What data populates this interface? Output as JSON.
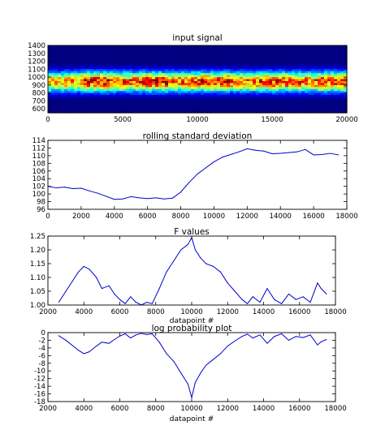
{
  "chart_data": [
    {
      "type": "heatmap",
      "title": "input signal",
      "xlabel": "",
      "ylabel": "",
      "xlim": [
        0,
        20000
      ],
      "ylim": [
        550,
        1400
      ],
      "x_ticks": [
        0,
        5000,
        10000,
        15000,
        20000
      ],
      "y_ticks": [
        600,
        700,
        800,
        900,
        1000,
        1100,
        1200,
        1300,
        1400
      ],
      "colormap": "jet",
      "band": {
        "center": 940,
        "halfwidth": 140,
        "intensity_profile": [
          0.6,
          0.95,
          0.75,
          0.9,
          0.7,
          0.85,
          0.65,
          0.8,
          0.7,
          0.85
        ]
      }
    },
    {
      "type": "line",
      "title": "rolling standard deviation",
      "xlabel": "",
      "ylabel": "",
      "xlim": [
        0,
        18000
      ],
      "ylim": [
        96,
        114
      ],
      "x_ticks": [
        0,
        2000,
        4000,
        6000,
        8000,
        10000,
        12000,
        14000,
        16000,
        18000
      ],
      "y_ticks": [
        96,
        98,
        100,
        102,
        104,
        106,
        108,
        110,
        112,
        114
      ],
      "series": [
        {
          "color": "#0000cc",
          "x": [
            0,
            500,
            1000,
            1500,
            2000,
            2500,
            3000,
            3500,
            4000,
            4500,
            5000,
            5500,
            6000,
            6500,
            7000,
            7500,
            8000,
            8500,
            9000,
            9500,
            10000,
            10500,
            11000,
            11500,
            12000,
            12500,
            13000,
            13500,
            14000,
            14500,
            15000,
            15500,
            16000,
            16500,
            17000,
            17500
          ],
          "values": [
            102.0,
            101.6,
            101.8,
            101.4,
            101.5,
            100.8,
            100.2,
            99.4,
            98.6,
            98.7,
            99.3,
            99.0,
            98.8,
            99.0,
            98.7,
            98.9,
            100.5,
            103.0,
            105.2,
            106.8,
            108.4,
            109.6,
            110.3,
            111.0,
            111.8,
            111.4,
            111.2,
            110.5,
            110.6,
            110.8,
            111.0,
            111.6,
            110.2,
            110.3,
            110.6,
            110.2
          ]
        }
      ]
    },
    {
      "type": "line",
      "title": "F values",
      "xlabel": "datapoint #",
      "ylabel": "",
      "xlim": [
        2000,
        18000
      ],
      "ylim": [
        1.0,
        1.25
      ],
      "x_ticks": [
        2000,
        4000,
        6000,
        8000,
        10000,
        12000,
        14000,
        16000,
        18000
      ],
      "y_ticks": [
        1.0,
        1.05,
        1.1,
        1.15,
        1.2,
        1.25
      ],
      "series": [
        {
          "color": "#0000cc",
          "x": [
            2600,
            3000,
            3400,
            3700,
            4000,
            4300,
            4700,
            5000,
            5400,
            5700,
            6000,
            6300,
            6600,
            6900,
            7200,
            7500,
            7800,
            8200,
            8600,
            9000,
            9400,
            9800,
            10000,
            10200,
            10500,
            10800,
            11200,
            11600,
            12000,
            12400,
            12800,
            13100,
            13400,
            13800,
            14200,
            14600,
            15000,
            15400,
            15800,
            16200,
            16600,
            17000,
            17200,
            17500
          ],
          "values": [
            1.01,
            1.05,
            1.09,
            1.12,
            1.14,
            1.13,
            1.1,
            1.06,
            1.07,
            1.04,
            1.02,
            1.005,
            1.03,
            1.01,
            1.0,
            1.01,
            1.005,
            1.06,
            1.12,
            1.16,
            1.2,
            1.22,
            1.245,
            1.2,
            1.17,
            1.15,
            1.14,
            1.12,
            1.08,
            1.05,
            1.02,
            1.005,
            1.03,
            1.01,
            1.06,
            1.02,
            1.005,
            1.04,
            1.02,
            1.03,
            1.01,
            1.08,
            1.06,
            1.04
          ]
        }
      ]
    },
    {
      "type": "line",
      "title": "log probability plot",
      "xlabel": "datapoint #",
      "ylabel": "",
      "xlim": [
        2000,
        18000
      ],
      "ylim": [
        -18,
        0
      ],
      "x_ticks": [
        2000,
        4000,
        6000,
        8000,
        10000,
        12000,
        14000,
        16000,
        18000
      ],
      "y_ticks": [
        0,
        -2,
        -4,
        -6,
        -8,
        -10,
        -12,
        -14,
        -16,
        -18
      ],
      "series": [
        {
          "color": "#0000cc",
          "x": [
            2600,
            3000,
            3400,
            3700,
            4000,
            4300,
            4700,
            5000,
            5400,
            5700,
            6000,
            6300,
            6600,
            6900,
            7200,
            7500,
            7800,
            8200,
            8600,
            9000,
            9400,
            9800,
            10000,
            10200,
            10500,
            10800,
            11200,
            11600,
            12000,
            12400,
            12800,
            13100,
            13400,
            13800,
            14200,
            14600,
            15000,
            15400,
            15800,
            16200,
            16600,
            17000,
            17200,
            17500
          ],
          "values": [
            -0.8,
            -2.0,
            -3.5,
            -4.6,
            -5.5,
            -5.0,
            -3.5,
            -2.5,
            -2.8,
            -1.8,
            -0.9,
            -0.3,
            -1.4,
            -0.6,
            -0.2,
            -0.5,
            -0.3,
            -2.5,
            -5.5,
            -7.5,
            -10.5,
            -13.5,
            -17.0,
            -13.0,
            -10.5,
            -8.5,
            -7.0,
            -5.5,
            -3.5,
            -2.2,
            -1.0,
            -0.4,
            -1.4,
            -0.6,
            -2.8,
            -1.0,
            -0.3,
            -2.0,
            -1.0,
            -1.3,
            -0.6,
            -3.2,
            -2.4,
            -1.8
          ]
        }
      ]
    }
  ]
}
